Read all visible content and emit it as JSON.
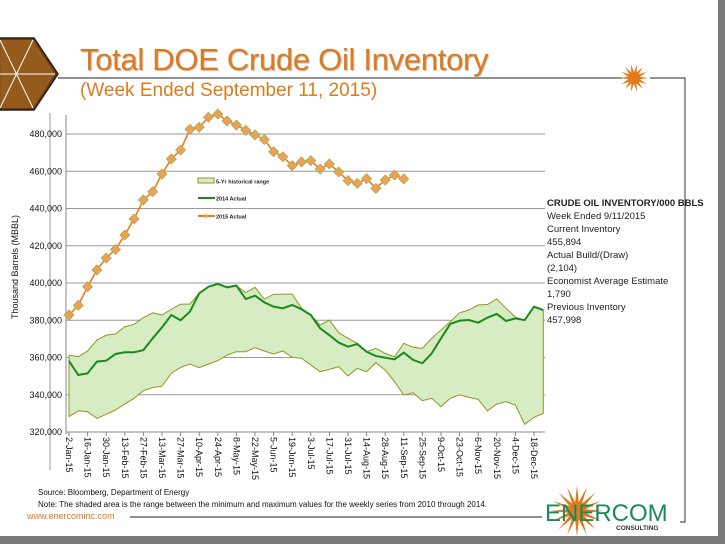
{
  "header": {
    "title": "Total DOE Crude Oil Inventory",
    "subtitle": "(Week Ended September 11, 2015)"
  },
  "info_box": {
    "heading": "CRUDE OIL INVENTORY/000 BBLS",
    "lines": [
      "Week Ended 9/11/2015",
      "Current Inventory",
      "455,894",
      "Actual Build/(Draw)",
      "(2,104)",
      "Economist Average Estimate",
      "1,790",
      "Previous Inventory",
      "457,998"
    ]
  },
  "footer": {
    "source": "Source: Bloomberg, Department of Energy",
    "note": "Note: The shaded area is the range between the minimum and maximum values for the weekly series from 2010 through 2014.",
    "url": "www.enercominc.com",
    "logo_text": "ENERCOM",
    "logo_sub": "CONSULTING"
  },
  "colors": {
    "accent": "#e07a1a",
    "range_fill": "#d8ecc4",
    "range_line": "#8a9a20",
    "actual_2014": "#1a8a1a",
    "actual_2015": "#f07a1a",
    "marker": "#f0a050"
  },
  "chart_data": {
    "type": "line",
    "title": "Total DOE Crude Oil Inventory",
    "ylabel": "Thousand Barrels (MBBL)",
    "xlabel": "",
    "ylim": [
      320000,
      480000
    ],
    "yticks": [
      "320,000",
      "340,000",
      "360,000",
      "380,000",
      "400,000",
      "420,000",
      "440,000",
      "460,000",
      "480,000"
    ],
    "ytick_values": [
      320000,
      340000,
      360000,
      380000,
      400000,
      420000,
      440000,
      460000,
      480000
    ],
    "x_tick_labels": [
      "2-Jan-15",
      "16-Jan-15",
      "30-Jan-15",
      "13-Feb-15",
      "27-Feb-15",
      "13-Mar-15",
      "27-Mar-15",
      "10-Apr-15",
      "24-Apr-15",
      "8-May-15",
      "22-May-15",
      "5-Jun-15",
      "19-Jun-15",
      "3-Jul-15",
      "17-Jul-15",
      "31-Jul-15",
      "14-Aug-15",
      "28-Aug-15",
      "11-Sep-15",
      "25-Sep-15",
      "9-Oct-15",
      "23-Oct-15",
      "6-Nov-15",
      "20-Nov-15",
      "4-Dec-15",
      "18-Dec-15"
    ],
    "weeks": 52,
    "legend": [
      "5-Yr historical range",
      "2014 Actual",
      "2015 Actual"
    ],
    "legend_placement": "center-left",
    "series": [
      {
        "name": "5-Yr historical range max",
        "values": [
          361.3,
          360.4,
          363.5,
          369.4,
          372,
          372.6,
          376.5,
          377.8,
          381.4,
          384,
          382.8,
          385.9,
          388.6,
          388.7,
          394.5,
          398,
          399.5,
          397.7,
          398.6,
          394.8,
          397.7,
          391.4,
          393.9,
          394,
          394,
          386.4,
          382.8,
          377.4,
          380.1,
          373.3,
          370.3,
          367.6,
          363.1,
          364.9,
          362.2,
          360.4,
          367.6,
          365.5,
          364.9,
          370.3,
          374.8,
          379.2,
          384,
          385.5,
          388.2,
          388.5,
          391.4,
          386.4,
          381.6,
          380.1,
          387.3,
          385.5
        ]
      },
      {
        "name": "5-Yr historical range min",
        "values": [
          328.2,
          331.4,
          330.9,
          327.3,
          329.5,
          331.8,
          335,
          338.1,
          342.2,
          343.8,
          344.7,
          351.5,
          354.7,
          356.5,
          354.5,
          356.5,
          358.3,
          361.3,
          363.1,
          363.1,
          365.3,
          363.5,
          361.9,
          363.5,
          360.1,
          359.6,
          356,
          352.4,
          353.6,
          355.1,
          350.1,
          354.2,
          352.4,
          357.2,
          353.3,
          347,
          339.9,
          341.1,
          336.8,
          338.1,
          333.6,
          338.1,
          339.9,
          338.6,
          337.5,
          331.4,
          335,
          336.3,
          334.5,
          324.1,
          327.9,
          330
        ]
      },
      {
        "name": "2014 Actual",
        "values": [
          358.1,
          350.6,
          351.5,
          357.8,
          358.3,
          361.9,
          362.8,
          362.8,
          364,
          370.3,
          376.2,
          382.8,
          380,
          384.6,
          394.5,
          398,
          399.5,
          397.7,
          398.6,
          391.4,
          393.2,
          389.6,
          387.3,
          386.4,
          388.2,
          385.9,
          382.8,
          375.7,
          372,
          368,
          365.8,
          367.2,
          363.1,
          360.8,
          359.9,
          359,
          362.6,
          358.7,
          356.9,
          362.2,
          370.3,
          378,
          379.8,
          380.1,
          378.7,
          381.4,
          383.4,
          379.6,
          381,
          380.1,
          387.3,
          385.5
        ]
      },
      {
        "name": "2015 Actual",
        "values": [
          382.8,
          388,
          398,
          407,
          413.4,
          418,
          425.8,
          434.4,
          444.6,
          449,
          458.5,
          466.6,
          471.4,
          482.5,
          483.6,
          489,
          490.7,
          487,
          484.8,
          482,
          479.5,
          477,
          470.5,
          467.8,
          463,
          465,
          465.7,
          461.2,
          463.9,
          459.6,
          455,
          453.5,
          456,
          450.8,
          455.3,
          458,
          455.9
        ]
      }
    ],
    "value_units": "thousand barrels"
  }
}
